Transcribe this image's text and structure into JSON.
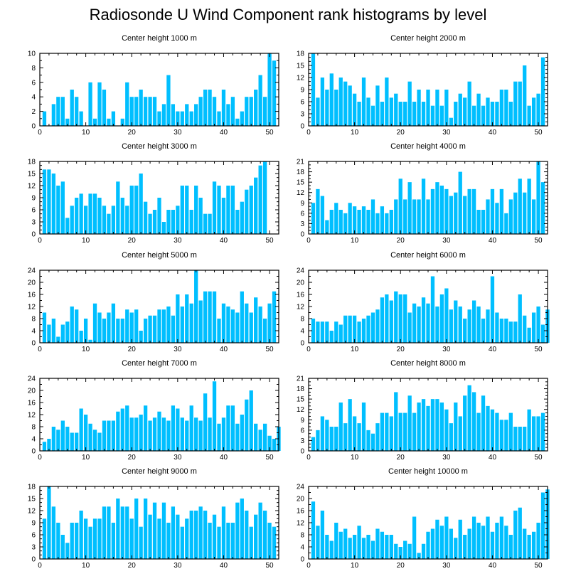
{
  "title": "Radiosonde U Wind Component rank histograms by level",
  "style": {
    "bar_color": "#00BFFF",
    "frame_color": "#000000",
    "background": "#ffffff"
  },
  "chart_data": [
    {
      "type": "bar",
      "title": "Center height 1000 m",
      "xlim": [
        0,
        52
      ],
      "xticks": [
        0,
        10,
        20,
        30,
        40,
        50
      ],
      "ylim": [
        0,
        10
      ],
      "yticks": [
        0,
        2,
        4,
        6,
        8,
        10
      ],
      "values": [
        2,
        0,
        3,
        4,
        4,
        1,
        5,
        4,
        2,
        0,
        6,
        1,
        6,
        5,
        1,
        2,
        0,
        1,
        6,
        4,
        4,
        5,
        4,
        4,
        4,
        2,
        3,
        7,
        3,
        2,
        2,
        3,
        2,
        3,
        4,
        5,
        5,
        4,
        2,
        5,
        3,
        4,
        1,
        2,
        4,
        4,
        5,
        7,
        4,
        10,
        9
      ]
    },
    {
      "type": "bar",
      "title": "Center height 2000 m",
      "xlim": [
        0,
        52
      ],
      "xticks": [
        0,
        10,
        20,
        30,
        40,
        50
      ],
      "ylim": [
        0,
        18
      ],
      "yticks": [
        0,
        3,
        6,
        9,
        12,
        15,
        18
      ],
      "values": [
        18,
        7,
        12,
        9,
        13,
        9,
        12,
        11,
        10,
        8,
        6,
        12,
        7,
        5,
        10,
        6,
        12,
        7,
        8,
        6,
        6,
        11,
        6,
        9,
        6,
        9,
        5,
        9,
        5,
        9,
        2,
        6,
        8,
        7,
        11,
        5,
        8,
        5,
        7,
        6,
        6,
        9,
        9,
        6,
        11,
        11,
        15,
        5,
        7,
        8,
        17
      ]
    },
    {
      "type": "bar",
      "title": "Center height 3000 m",
      "xlim": [
        0,
        52
      ],
      "xticks": [
        0,
        10,
        20,
        30,
        40,
        50
      ],
      "ylim": [
        0,
        18
      ],
      "yticks": [
        0,
        3,
        6,
        9,
        12,
        15,
        18
      ],
      "values": [
        16,
        16,
        15,
        12,
        13,
        4,
        7,
        9,
        10,
        7,
        10,
        10,
        9,
        7,
        5,
        7,
        13,
        9,
        7,
        12,
        12,
        15,
        8,
        5,
        6,
        9,
        3,
        6,
        6,
        7,
        12,
        12,
        6,
        12,
        9,
        5,
        5,
        13,
        12,
        9,
        12,
        12,
        6,
        8,
        11,
        12,
        14,
        17,
        18
      ]
    },
    {
      "type": "bar",
      "title": "Center height 4000 m",
      "xlim": [
        0,
        52
      ],
      "xticks": [
        0,
        10,
        20,
        30,
        40,
        50
      ],
      "ylim": [
        0,
        21
      ],
      "yticks": [
        0,
        3,
        6,
        9,
        12,
        15,
        18,
        21
      ],
      "values": [
        9,
        13,
        11,
        4,
        7,
        9,
        7,
        6,
        9,
        8,
        7,
        8,
        7,
        10,
        6,
        8,
        6,
        7,
        10,
        16,
        10,
        15,
        10,
        10,
        16,
        10,
        13,
        15,
        14,
        13,
        11,
        12,
        18,
        11,
        13,
        13,
        7,
        7,
        10,
        13,
        9,
        13,
        6,
        10,
        12,
        16,
        12,
        16,
        10,
        21,
        15
      ]
    },
    {
      "type": "bar",
      "title": "Center height 5000 m",
      "xlim": [
        0,
        52
      ],
      "xticks": [
        0,
        10,
        20,
        30,
        40,
        50
      ],
      "ylim": [
        0,
        24
      ],
      "yticks": [
        0,
        4,
        8,
        12,
        16,
        20,
        24
      ],
      "values": [
        10,
        6,
        8,
        2,
        6,
        7,
        12,
        11,
        4,
        8,
        1,
        13,
        10,
        8,
        10,
        13,
        8,
        8,
        11,
        10,
        11,
        4,
        8,
        9,
        9,
        11,
        11,
        12,
        9,
        16,
        12,
        16,
        13,
        24,
        14,
        17,
        17,
        17,
        8,
        13,
        12,
        11,
        10,
        17,
        13,
        10,
        15,
        12,
        8,
        13,
        17
      ]
    },
    {
      "type": "bar",
      "title": "Center height 6000 m",
      "xlim": [
        0,
        52
      ],
      "xticks": [
        0,
        10,
        20,
        30,
        40,
        50
      ],
      "ylim": [
        0,
        24
      ],
      "yticks": [
        0,
        4,
        8,
        12,
        16,
        20,
        24
      ],
      "values": [
        8,
        7,
        7,
        7,
        4,
        7,
        6,
        9,
        9,
        9,
        7,
        8,
        9,
        10,
        11,
        15,
        16,
        14,
        17,
        16,
        16,
        10,
        13,
        12,
        15,
        13,
        22,
        12,
        16,
        18,
        11,
        14,
        12,
        8,
        11,
        14,
        12,
        8,
        11,
        22,
        10,
        8,
        8,
        7,
        7,
        16,
        9,
        5,
        10,
        12,
        6,
        11
      ]
    },
    {
      "type": "bar",
      "title": "Center height 7000 m",
      "xlim": [
        0,
        52
      ],
      "xticks": [
        0,
        10,
        20,
        30,
        40,
        50
      ],
      "ylim": [
        0,
        24
      ],
      "yticks": [
        0,
        4,
        8,
        12,
        16,
        20,
        24
      ],
      "values": [
        3,
        4,
        8,
        7,
        10,
        8,
        6,
        6,
        14,
        12,
        9,
        7,
        6,
        10,
        10,
        10,
        13,
        14,
        15,
        11,
        11,
        12,
        15,
        10,
        11,
        13,
        11,
        10,
        15,
        14,
        11,
        10,
        15,
        11,
        10,
        19,
        11,
        23,
        9,
        11,
        15,
        15,
        9,
        12,
        17,
        20,
        9,
        7,
        9,
        5,
        4,
        8
      ]
    },
    {
      "type": "bar",
      "title": "Center height 8000 m",
      "xlim": [
        0,
        52
      ],
      "xticks": [
        0,
        10,
        20,
        30,
        40,
        50
      ],
      "ylim": [
        0,
        21
      ],
      "yticks": [
        0,
        3,
        6,
        9,
        12,
        15,
        18,
        21
      ],
      "values": [
        4,
        6,
        10,
        9,
        7,
        7,
        14,
        8,
        15,
        10,
        8,
        14,
        6,
        5,
        8,
        11,
        11,
        10,
        17,
        11,
        11,
        16,
        11,
        14,
        15,
        13,
        15,
        15,
        14,
        12,
        8,
        14,
        10,
        16,
        19,
        17,
        11,
        16,
        13,
        12,
        11,
        9,
        9,
        11,
        7,
        7,
        7,
        12,
        10,
        10,
        11
      ]
    },
    {
      "type": "bar",
      "title": "Center height 9000 m",
      "xlim": [
        0,
        52
      ],
      "xticks": [
        0,
        10,
        20,
        30,
        40,
        50
      ],
      "ylim": [
        0,
        18
      ],
      "yticks": [
        0,
        3,
        6,
        9,
        12,
        15,
        18
      ],
      "values": [
        10,
        18,
        13,
        9,
        6,
        4,
        9,
        9,
        12,
        10,
        8,
        10,
        10,
        13,
        13,
        9,
        15,
        13,
        13,
        10,
        15,
        8,
        15,
        11,
        14,
        10,
        14,
        9,
        13,
        11,
        8,
        10,
        12,
        12,
        13,
        12,
        9,
        11,
        8,
        13,
        9,
        9,
        14,
        15,
        12,
        8,
        11,
        14,
        12,
        9,
        8
      ]
    },
    {
      "type": "bar",
      "title": "Center height 10000 m",
      "xlim": [
        0,
        52
      ],
      "xticks": [
        0,
        10,
        20,
        30,
        40,
        50
      ],
      "ylim": [
        0,
        24
      ],
      "yticks": [
        0,
        4,
        8,
        12,
        16,
        20,
        24
      ],
      "values": [
        19,
        11,
        16,
        8,
        6,
        12,
        9,
        10,
        7,
        8,
        11,
        7,
        8,
        6,
        10,
        9,
        8,
        8,
        5,
        4,
        6,
        5,
        14,
        2,
        5,
        9,
        10,
        13,
        11,
        14,
        10,
        7,
        13,
        8,
        10,
        14,
        12,
        11,
        14,
        9,
        12,
        14,
        11,
        8,
        16,
        17,
        10,
        8,
        9,
        12,
        22,
        23
      ]
    }
  ]
}
